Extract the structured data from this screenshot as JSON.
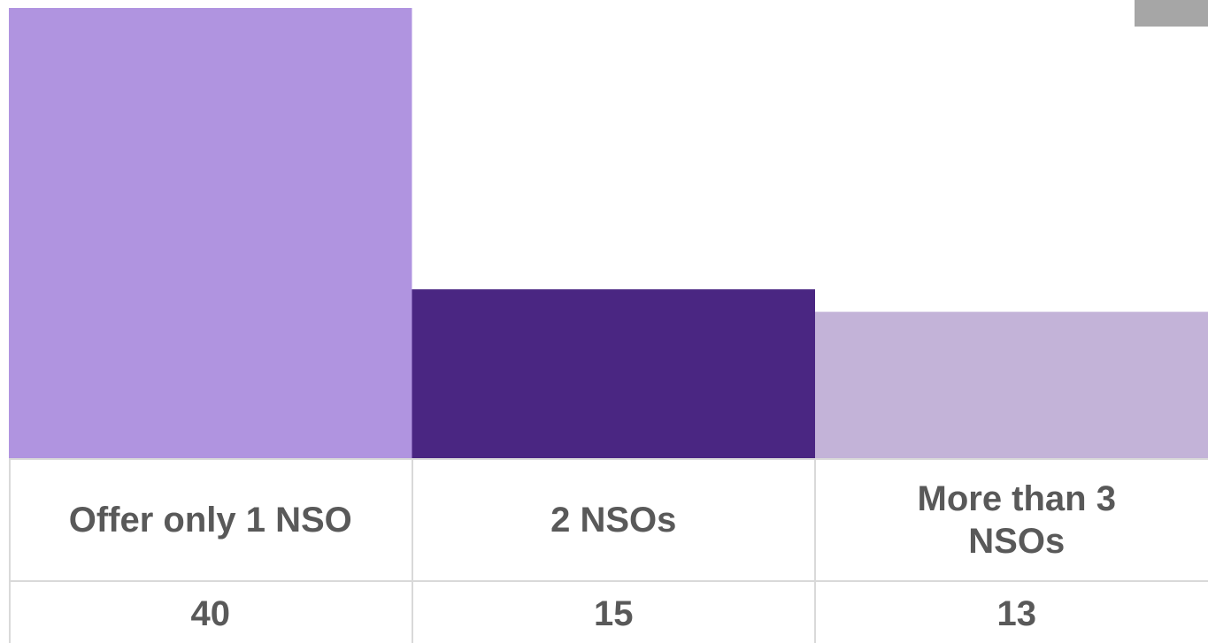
{
  "chart_data": {
    "type": "bar",
    "categories": [
      "Offer only 1 NSO",
      "2 NSOs",
      "More than 3 NSOs"
    ],
    "values": [
      40,
      15,
      13
    ],
    "colors": [
      "#b094e0",
      "#4a2682",
      "#c3b3d8"
    ]
  }
}
